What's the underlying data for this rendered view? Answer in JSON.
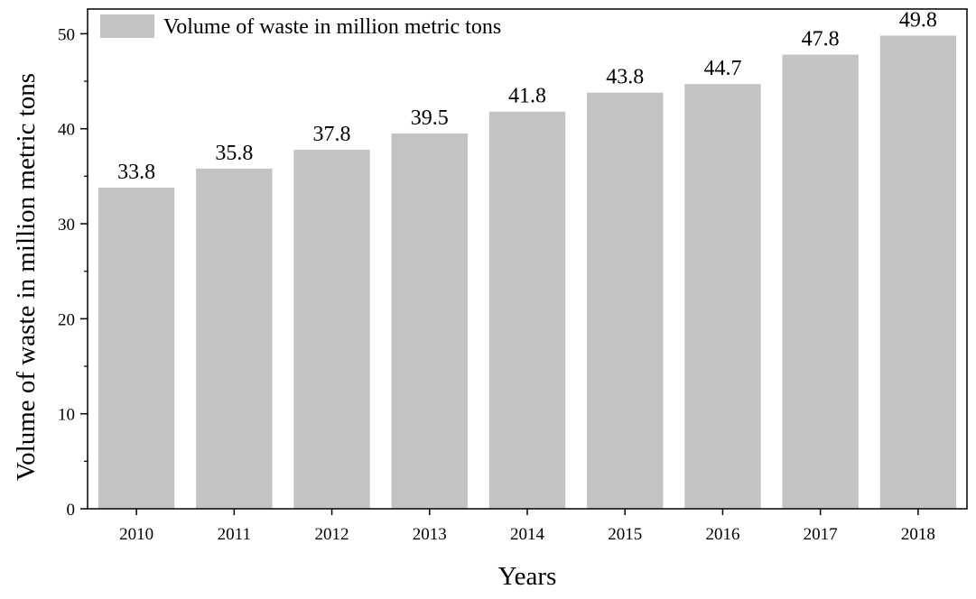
{
  "chart_data": {
    "type": "bar",
    "categories": [
      "2010",
      "2011",
      "2012",
      "2013",
      "2014",
      "2015",
      "2016",
      "2017",
      "2018"
    ],
    "series": [
      {
        "name": "Volume of waste in million metric tons",
        "values": [
          33.8,
          35.8,
          37.8,
          39.5,
          41.8,
          43.8,
          44.7,
          47.8,
          49.8
        ],
        "color": "#c3c3c3"
      }
    ],
    "data_labels": [
      "33.8",
      "35.8",
      "37.8",
      "39.5",
      "41.8",
      "43.8",
      "44.7",
      "47.8",
      "49.8"
    ],
    "xlabel": "Years",
    "ylabel": "Volume of waste in million metric tons",
    "ylim": [
      0,
      52.6
    ],
    "yticks": [
      0,
      10,
      20,
      30,
      40,
      50
    ],
    "ytick_labels": [
      "0",
      "10",
      "20",
      "30",
      "40",
      "50"
    ],
    "grid": false,
    "legend_position": "top-left"
  }
}
